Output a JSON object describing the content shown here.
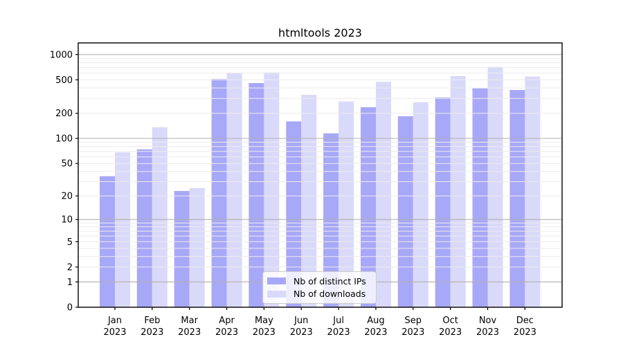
{
  "chart_data": {
    "type": "bar",
    "title": "htmltools 2023",
    "categories": [
      "Jan",
      "Feb",
      "Mar",
      "Apr",
      "May",
      "Jun",
      "Jul",
      "Aug",
      "Sep",
      "Oct",
      "Nov",
      "Dec"
    ],
    "category_year": "2023",
    "series": [
      {
        "name": "Nb of distinct IPs",
        "color": "#a8a8f8",
        "values": [
          35,
          74,
          23,
          511,
          458,
          160,
          115,
          236,
          184,
          308,
          396,
          379
        ]
      },
      {
        "name": "Nb of downloads",
        "color": "#d9d9fa",
        "values": [
          68,
          136,
          25,
          609,
          612,
          332,
          276,
          473,
          271,
          555,
          713,
          547
        ]
      }
    ],
    "yscale": "log(v+1)",
    "yticks": [
      0,
      1,
      2,
      5,
      10,
      20,
      50,
      100,
      200,
      500,
      1000
    ],
    "major_grid_values": [
      1,
      10,
      100,
      1000
    ],
    "ylim": [
      0,
      1380
    ],
    "grid": true,
    "legend_position": "lower center",
    "colors": {
      "axis": "#000000",
      "minor_grid": "#ececec",
      "major_grid": "#b0b0b0",
      "text": "#000000"
    }
  }
}
